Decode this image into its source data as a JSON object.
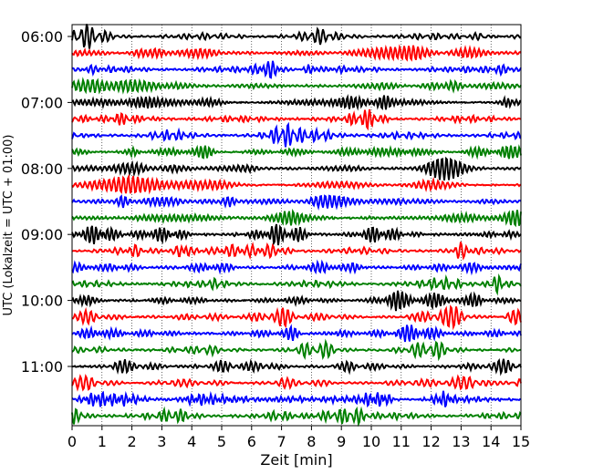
{
  "chart_data": {
    "type": "line",
    "title": "",
    "xlabel": "Zeit  [min]",
    "ylabel": "UTC (Lokalzeit = UTC + 01:00)",
    "xlim": [
      0,
      15
    ],
    "x_ticks": [
      "0",
      "1",
      "2",
      "3",
      "4",
      "5",
      "6",
      "7",
      "8",
      "9",
      "10",
      "11",
      "12",
      "13",
      "14",
      "15"
    ],
    "y_ticks": [
      "06:00",
      "07:00",
      "08:00",
      "09:00",
      "10:00",
      "11:00"
    ],
    "trace_interval_min": 15,
    "start_time": "06:00",
    "trace_colors": [
      "#000000",
      "#ff0000",
      "#0000ff",
      "#008000"
    ],
    "x_grid": "dotted",
    "traces": 24
  }
}
